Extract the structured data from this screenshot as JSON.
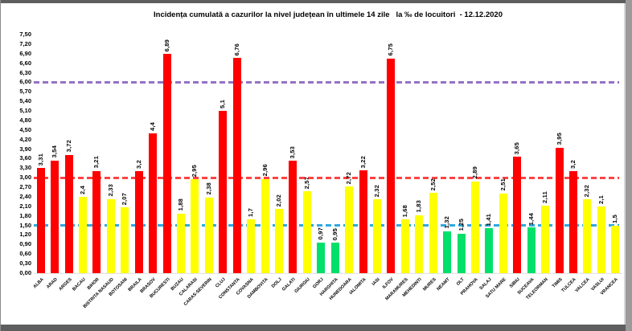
{
  "chart_data": {
    "type": "bar",
    "title": "Incidența cumulată a cazurilor la nivel județean în ultimele 14 zile   la ‰ de locuitori  - 12.12.2020",
    "categories": [
      "ALBA",
      "ARAD",
      "ARGES",
      "BACAU",
      "BIHOR",
      "BISTRITA NASAUD",
      "BOTOSANI",
      "BRAILA",
      "BRASOV",
      "BUCURESTI",
      "BUZAU",
      "CALARASI",
      "CARAS-SEVERIN",
      "CLUJ",
      "CONSTANTA",
      "COVASNA",
      "DAMBOVITA",
      "DOLJ",
      "GALATI",
      "GIURGIU",
      "GORJ",
      "HARGHITA",
      "HUNEDOARA",
      "IALOMITA",
      "IASI",
      "ILFOV",
      "MARAMURES",
      "MEHEDINTI",
      "MURES",
      "NEAMT",
      "OLT",
      "PRAHOVA",
      "SALAJ",
      "SATU MARE",
      "SIBIU",
      "SUCEAVA",
      "TELEORMAN",
      "TIMIS",
      "TULCEA",
      "VALCEA",
      "VASLUI",
      "VRANCEA"
    ],
    "values": [
      3.31,
      3.54,
      3.72,
      2.4,
      3.21,
      2.33,
      2.07,
      3.2,
      4.4,
      6.89,
      1.88,
      2.95,
      2.38,
      5.1,
      6.76,
      1.7,
      2.96,
      2.02,
      3.53,
      2.57,
      0.97,
      0.95,
      2.72,
      3.22,
      2.32,
      6.75,
      1.68,
      1.83,
      2.52,
      1.32,
      1.25,
      2.89,
      1.41,
      2.51,
      3.65,
      1.44,
      2.11,
      3.95,
      3.2,
      2.32,
      2.1,
      1.5
    ],
    "value_labels": [
      "3,31",
      "3,54",
      "3,72",
      "2,4",
      "3,21",
      "2,33",
      "2,07",
      "3,2",
      "4,4",
      "6,89",
      "1,88",
      "2,95",
      "2,38",
      "5,1",
      "6,76",
      "1,7",
      "2,96",
      "2,02",
      "3,53",
      "2,57",
      "0,97",
      "0,95",
      "2,72",
      "3,22",
      "2,32",
      "6,75",
      "1,68",
      "1,83",
      "2,52",
      "1,32",
      "1,25",
      "2,89",
      "1,41",
      "2,51",
      "3,65",
      "1,44",
      "2,11",
      "3,95",
      "3,2",
      "2,32",
      "2,1",
      "1,5"
    ],
    "bar_colors": [
      "red",
      "red",
      "red",
      "yellow",
      "red",
      "yellow",
      "yellow",
      "red",
      "red",
      "red",
      "yellow",
      "yellow",
      "yellow",
      "red",
      "red",
      "yellow",
      "yellow",
      "yellow",
      "red",
      "yellow",
      "green",
      "green",
      "yellow",
      "red",
      "yellow",
      "red",
      "yellow",
      "yellow",
      "yellow",
      "green",
      "green",
      "yellow",
      "green",
      "yellow",
      "red",
      "green",
      "yellow",
      "red",
      "red",
      "yellow",
      "yellow",
      "yellow"
    ],
    "palette": {
      "red": "#ff0000",
      "yellow": "#ffff00",
      "green": "#00e06a"
    },
    "ylim": [
      0,
      7.5
    ],
    "ytick_step": 0.3,
    "yticks": [
      "0,00",
      "0,30",
      "0,60",
      "0,90",
      "1,20",
      "1,50",
      "1,80",
      "2,10",
      "2,40",
      "2,70",
      "3,00",
      "3,30",
      "3,60",
      "3,90",
      "4,20",
      "4,50",
      "4,80",
      "5,10",
      "5,40",
      "5,70",
      "6,00",
      "6,30",
      "6,60",
      "6,90",
      "7,20",
      "7,50"
    ],
    "reference_lines": [
      {
        "value": 6.0,
        "color": "#9472c4",
        "style": "dashed"
      },
      {
        "value": 3.0,
        "color": "#ff4242",
        "style": "dashed"
      },
      {
        "value": 1.5,
        "color": "#2fa9e0",
        "style": "dashed"
      }
    ],
    "grid": false,
    "legend": false
  }
}
